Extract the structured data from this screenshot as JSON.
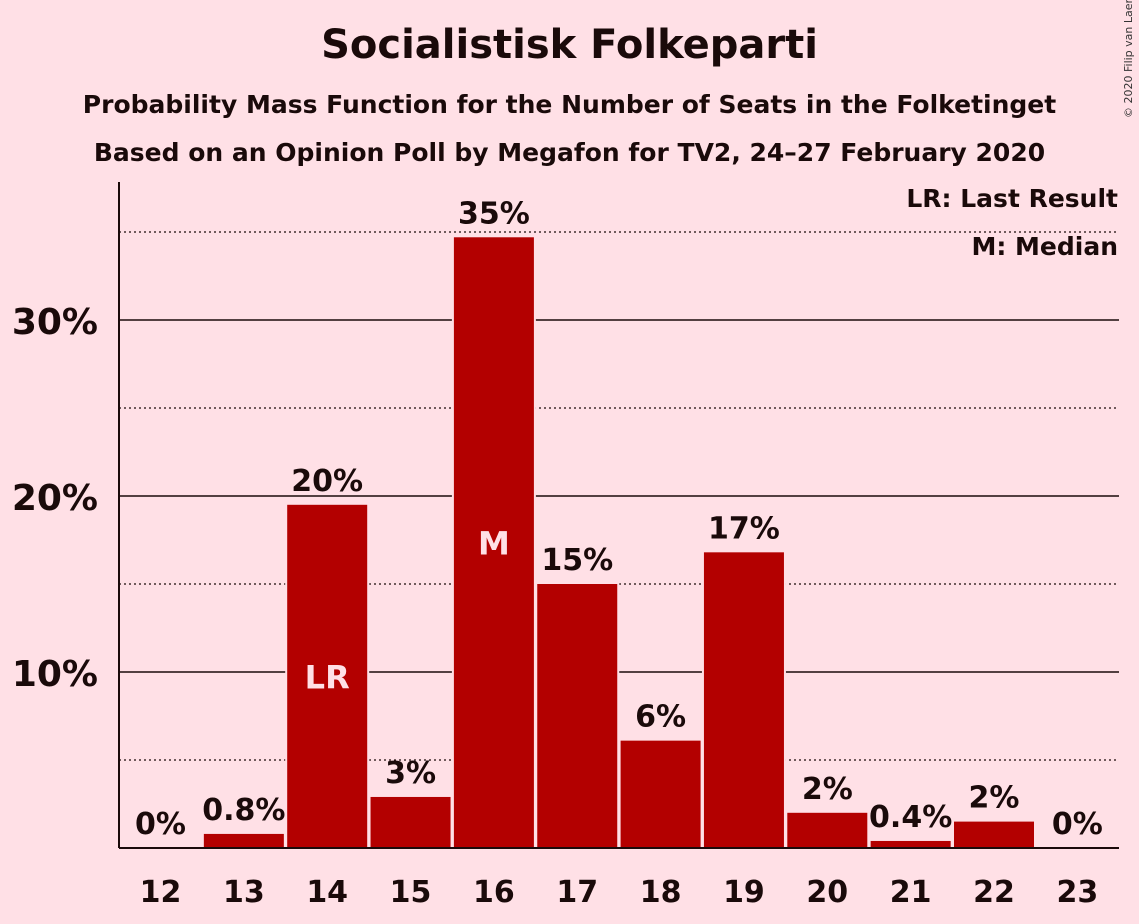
{
  "chart_data": {
    "type": "bar",
    "title": "Socialistisk Folkeparti",
    "subtitle": "Probability Mass Function for the Number of Seats in the Folketinget",
    "subtitle2": "Based on an Opinion Poll by Megafon for TV2, 24–27 February 2020",
    "copyright": "© 2020 Filip van Laenen",
    "legend": [
      "LR: Last Result",
      "M: Median"
    ],
    "legend_position": "top-right",
    "categories": [
      "12",
      "13",
      "14",
      "15",
      "16",
      "17",
      "18",
      "19",
      "20",
      "21",
      "22",
      "23"
    ],
    "values": [
      0,
      0.8,
      19.5,
      2.9,
      34.7,
      15.0,
      6.1,
      16.8,
      2.0,
      0.4,
      1.5,
      0
    ],
    "value_labels": [
      "0%",
      "0.8%",
      "20%",
      "3%",
      "35%",
      "15%",
      "6%",
      "17%",
      "2%",
      "0.4%",
      "2%",
      "0%"
    ],
    "markers": [
      {
        "category": "14",
        "label": "LR"
      },
      {
        "category": "16",
        "label": "M"
      }
    ],
    "yticks": [
      10,
      20,
      30
    ],
    "ytick_labels": [
      "10%",
      "20%",
      "30%"
    ],
    "minor_gridlines": [
      5,
      15,
      25,
      35
    ],
    "ylim": [
      0,
      37.8
    ],
    "grid": true,
    "colors": {
      "bar": "#B30000",
      "background": "#FFE0E6",
      "text": "#1a0a0a",
      "marker_text": "#FFE0E6"
    }
  }
}
